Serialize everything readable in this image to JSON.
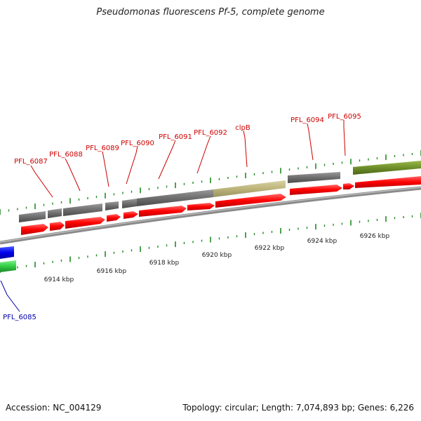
{
  "title": "Pseudomonas fluorescens Pf-5, complete genome",
  "footer": {
    "accession": "Accession: NC_004129",
    "topology": "Topology: circular; Length: 7,074,893 bp; Genes: 6,226"
  },
  "colors": {
    "cds_forward": "#ff0000",
    "gene_gray": "#707070",
    "gene_olive": "#6f8f2a",
    "gene_khaki": "#c0b880",
    "left_blue": "#0000ee",
    "left_green": "#33cc44",
    "label_red": "#cc0000",
    "label_blue": "#0000aa",
    "tick_green": "#228b22"
  },
  "scale": {
    "unit": "kbp",
    "labels": [
      "6914 kbp",
      "6916 kbp",
      "6918 kbp",
      "6920 kbp",
      "6922 kbp",
      "6924 kbp",
      "6926 kbp"
    ]
  },
  "genes": [
    {
      "label": "PFL_6087"
    },
    {
      "label": "PFL_6088"
    },
    {
      "label": "PFL_6089"
    },
    {
      "label": "PFL_6090"
    },
    {
      "label": "PFL_6091"
    },
    {
      "label": "PFL_6092"
    },
    {
      "label": "clpB"
    },
    {
      "label": "PFL_6094"
    },
    {
      "label": "PFL_6095"
    },
    {
      "label": "PFL_6085"
    }
  ]
}
